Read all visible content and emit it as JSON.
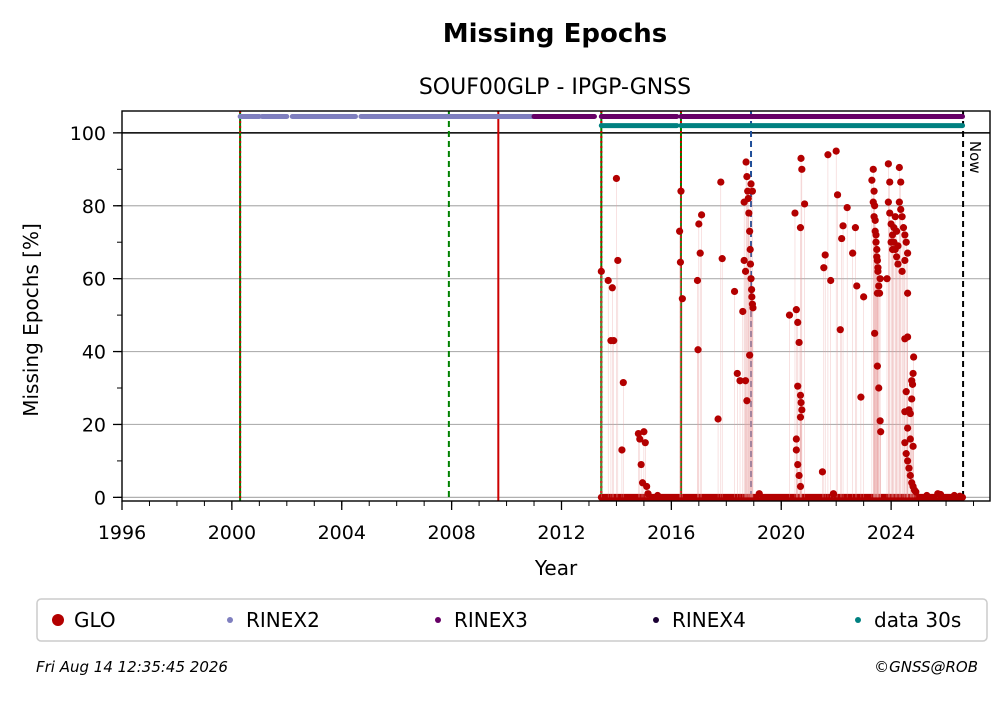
{
  "chart_data": {
    "type": "scatter",
    "title": "Missing Epochs",
    "subtitle": "SOUF00GLP - IPGP-GNSS",
    "xlabel": "Year",
    "ylabel": "Missing Epochs [%]",
    "xlim": [
      1996,
      2027.6
    ],
    "ylim": [
      -1,
      106
    ],
    "x_ticks": [
      "1996",
      "2000",
      "2004",
      "2008",
      "2012",
      "2016",
      "2020",
      "2024"
    ],
    "y_ticks": [
      "0",
      "20",
      "40",
      "60",
      "80",
      "100"
    ],
    "grid": true,
    "now_label": "Now",
    "now_year": 2026.62,
    "legend": {
      "placement": "bottom",
      "entries": [
        {
          "name": "GLO",
          "color": "#b30000"
        },
        {
          "name": "RINEX2",
          "color": "#7f7fbf"
        },
        {
          "name": "RINEX3",
          "color": "#660066"
        },
        {
          "name": "RINEX4",
          "color": "#1a0033"
        },
        {
          "name": "data 30s",
          "color": "#008080"
        }
      ]
    },
    "vertical_lines": [
      {
        "x": 2000.3,
        "color": "#008000",
        "style": "solid"
      },
      {
        "x": 2000.3,
        "color": "#cc0000",
        "style": "dotted"
      },
      {
        "x": 2007.9,
        "color": "#008000",
        "style": "dashed"
      },
      {
        "x": 2009.7,
        "color": "#cc0000",
        "style": "solid"
      },
      {
        "x": 2013.45,
        "color": "#008000",
        "style": "solid"
      },
      {
        "x": 2013.45,
        "color": "#cc0000",
        "style": "dotted"
      },
      {
        "x": 2016.35,
        "color": "#008000",
        "style": "solid"
      },
      {
        "x": 2016.35,
        "color": "#cc0000",
        "style": "dotted"
      },
      {
        "x": 2018.9,
        "color": "#1f4e99",
        "style": "dashed"
      },
      {
        "x": 2026.62,
        "color": "#000000",
        "style": "dashed"
      }
    ],
    "availability_bars": [
      {
        "name": "RINEX2",
        "y": 104.5,
        "color": "#7f7fbf",
        "segments": [
          [
            2000.3,
            2001.0
          ],
          [
            2001.1,
            2002.0
          ],
          [
            2002.2,
            2004.5
          ],
          [
            2004.7,
            2011.0
          ]
        ]
      },
      {
        "name": "RINEX3",
        "y": 104.5,
        "color": "#660066",
        "segments": [
          [
            2011.0,
            2013.2
          ],
          [
            2013.45,
            2016.2
          ],
          [
            2016.35,
            2026.6
          ]
        ]
      },
      {
        "name": "data 30s",
        "y": 102.0,
        "color": "#008080",
        "segments": [
          [
            2013.45,
            2016.2
          ],
          [
            2016.35,
            2026.6
          ]
        ]
      }
    ],
    "series": [
      {
        "name": "GLO",
        "color": "#b30000",
        "baseline": {
          "y": 0,
          "x_range": [
            2013.45,
            2026.6
          ]
        },
        "points": [
          [
            2013.45,
            62
          ],
          [
            2013.7,
            59.5
          ],
          [
            2013.8,
            43
          ],
          [
            2013.85,
            57.5
          ],
          [
            2013.9,
            43
          ],
          [
            2014.0,
            87.5
          ],
          [
            2014.05,
            65
          ],
          [
            2014.2,
            13
          ],
          [
            2014.25,
            31.5
          ],
          [
            2014.8,
            17.5
          ],
          [
            2014.85,
            16
          ],
          [
            2014.9,
            9
          ],
          [
            2014.95,
            4
          ],
          [
            2015.0,
            18
          ],
          [
            2015.05,
            15
          ],
          [
            2015.1,
            3
          ],
          [
            2015.15,
            1
          ],
          [
            2015.5,
            0.5
          ],
          [
            2016.35,
            84
          ],
          [
            2016.3,
            73
          ],
          [
            2016.33,
            64.5
          ],
          [
            2016.4,
            54.5
          ],
          [
            2016.95,
            59.5
          ],
          [
            2016.97,
            40.5
          ],
          [
            2017.0,
            75
          ],
          [
            2017.1,
            77.5
          ],
          [
            2017.05,
            67
          ],
          [
            2017.7,
            21.5
          ],
          [
            2017.8,
            86.5
          ],
          [
            2017.85,
            65.5
          ],
          [
            2018.3,
            56.5
          ],
          [
            2018.4,
            34
          ],
          [
            2018.5,
            32
          ],
          [
            2018.6,
            51
          ],
          [
            2018.65,
            81
          ],
          [
            2018.7,
            32
          ],
          [
            2018.72,
            92
          ],
          [
            2018.75,
            88
          ],
          [
            2018.78,
            84
          ],
          [
            2018.8,
            82
          ],
          [
            2018.82,
            78
          ],
          [
            2018.85,
            73
          ],
          [
            2018.87,
            68
          ],
          [
            2018.88,
            64
          ],
          [
            2018.9,
            60
          ],
          [
            2018.92,
            57
          ],
          [
            2018.93,
            55
          ],
          [
            2018.95,
            53
          ],
          [
            2018.97,
            52
          ],
          [
            2018.75,
            26.5
          ],
          [
            2018.85,
            39
          ],
          [
            2018.9,
            86
          ],
          [
            2018.95,
            84
          ],
          [
            2018.65,
            65
          ],
          [
            2018.7,
            62
          ],
          [
            2019.2,
            1
          ],
          [
            2020.3,
            50
          ],
          [
            2020.5,
            78
          ],
          [
            2020.55,
            51.5
          ],
          [
            2020.6,
            48
          ],
          [
            2020.65,
            42.5
          ],
          [
            2020.7,
            74
          ],
          [
            2020.72,
            93
          ],
          [
            2020.75,
            90
          ],
          [
            2020.85,
            80.5
          ],
          [
            2020.55,
            16
          ],
          [
            2020.6,
            30.5
          ],
          [
            2020.7,
            28
          ],
          [
            2020.72,
            26
          ],
          [
            2020.75,
            24
          ],
          [
            2020.7,
            22
          ],
          [
            2020.55,
            13
          ],
          [
            2020.6,
            9
          ],
          [
            2020.65,
            6
          ],
          [
            2020.7,
            3
          ],
          [
            2021.5,
            7
          ],
          [
            2021.55,
            63
          ],
          [
            2021.6,
            66.5
          ],
          [
            2021.7,
            94
          ],
          [
            2021.8,
            59.5
          ],
          [
            2021.9,
            1
          ],
          [
            2022.0,
            95
          ],
          [
            2022.05,
            83
          ],
          [
            2022.2,
            71
          ],
          [
            2022.25,
            74.5
          ],
          [
            2022.15,
            46
          ],
          [
            2022.4,
            79.5
          ],
          [
            2022.6,
            67
          ],
          [
            2022.7,
            74
          ],
          [
            2022.75,
            58
          ],
          [
            2022.9,
            27.5
          ],
          [
            2023.0,
            55
          ],
          [
            2023.3,
            87
          ],
          [
            2023.35,
            90
          ],
          [
            2023.38,
            84
          ],
          [
            2023.4,
            80
          ],
          [
            2023.42,
            76
          ],
          [
            2023.45,
            72
          ],
          [
            2023.48,
            68
          ],
          [
            2023.5,
            65
          ],
          [
            2023.52,
            62
          ],
          [
            2023.55,
            58
          ],
          [
            2023.58,
            56
          ],
          [
            2023.6,
            60
          ],
          [
            2023.35,
            81
          ],
          [
            2023.38,
            77
          ],
          [
            2023.42,
            73
          ],
          [
            2023.45,
            70
          ],
          [
            2023.48,
            66
          ],
          [
            2023.52,
            63
          ],
          [
            2023.4,
            45
          ],
          [
            2023.5,
            36
          ],
          [
            2023.55,
            30
          ],
          [
            2023.6,
            21
          ],
          [
            2023.62,
            18
          ],
          [
            2023.5,
            56
          ],
          [
            2023.9,
            91.5
          ],
          [
            2023.95,
            86.5
          ],
          [
            2023.85,
            60
          ],
          [
            2023.9,
            81
          ],
          [
            2023.95,
            78
          ],
          [
            2024.0,
            75
          ],
          [
            2024.05,
            72
          ],
          [
            2024.1,
            70
          ],
          [
            2024.15,
            68
          ],
          [
            2024.2,
            66
          ],
          [
            2024.25,
            64
          ],
          [
            2024.3,
            90.5
          ],
          [
            2024.35,
            86.5
          ],
          [
            2024.3,
            81
          ],
          [
            2024.35,
            79
          ],
          [
            2024.4,
            77
          ],
          [
            2024.45,
            74
          ],
          [
            2024.5,
            72
          ],
          [
            2024.55,
            70
          ],
          [
            2024.6,
            67
          ],
          [
            2024.5,
            65
          ],
          [
            2024.4,
            62
          ],
          [
            2024.6,
            56
          ],
          [
            2024.0,
            70
          ],
          [
            2024.05,
            68
          ],
          [
            2024.1,
            74
          ],
          [
            2024.15,
            77
          ],
          [
            2024.2,
            73
          ],
          [
            2024.25,
            69
          ],
          [
            2024.5,
            43.5
          ],
          [
            2024.6,
            44
          ],
          [
            2024.55,
            29
          ],
          [
            2024.5,
            23.5
          ],
          [
            2024.65,
            24
          ],
          [
            2024.7,
            23
          ],
          [
            2024.75,
            27
          ],
          [
            2024.78,
            31
          ],
          [
            2024.8,
            34
          ],
          [
            2024.82,
            38.5
          ],
          [
            2024.75,
            32
          ],
          [
            2024.5,
            15
          ],
          [
            2024.55,
            12
          ],
          [
            2024.6,
            10
          ],
          [
            2024.65,
            8
          ],
          [
            2024.7,
            6
          ],
          [
            2024.75,
            4
          ],
          [
            2024.8,
            3
          ],
          [
            2024.85,
            2
          ],
          [
            2024.9,
            1.5
          ],
          [
            2024.6,
            19
          ],
          [
            2024.7,
            16
          ],
          [
            2024.8,
            14
          ],
          [
            2025.3,
            0.5
          ],
          [
            2025.7,
            1
          ],
          [
            2025.8,
            0.8
          ],
          [
            2026.3,
            0.5
          ],
          [
            2026.5,
            0.3
          ]
        ]
      }
    ]
  },
  "footer": {
    "timestamp": "Fri Aug 14 12:35:45 2026",
    "copyright": "©GNSS@ROB"
  }
}
